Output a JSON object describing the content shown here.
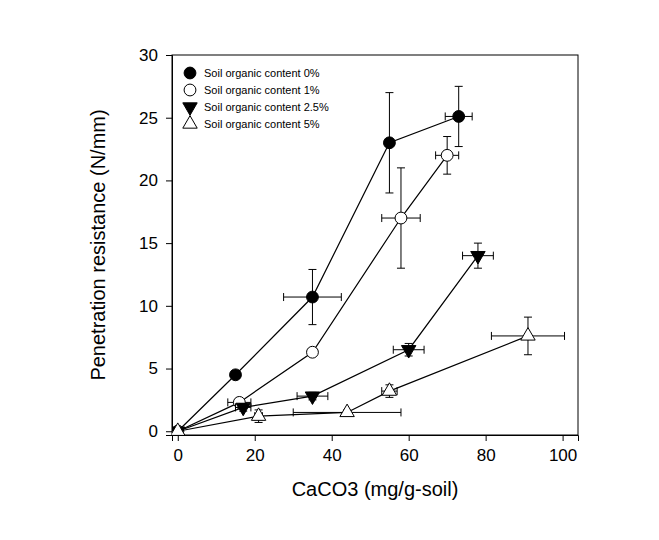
{
  "chart_data": {
    "type": "line",
    "x_label": "CaCO3 (mg/g-soil)",
    "y_label": "Penetration resistance (N/mm)",
    "xlim": [
      -1.5,
      104
    ],
    "xticks": [
      0,
      20,
      40,
      60,
      80,
      100
    ],
    "ylim": [
      -0.3,
      30
    ],
    "yticks": [
      0,
      5,
      10,
      15,
      20,
      25,
      30
    ],
    "grid": false,
    "legend": "upper left",
    "series": [
      {
        "name": "Soil organic content 0%",
        "color": "#000000",
        "marker": "filled-circle",
        "x": [
          0,
          15,
          35,
          55,
          73
        ],
        "values": [
          0,
          4.5,
          10.7,
          23,
          25.1
        ],
        "x_error": [
          0,
          1,
          7.5,
          0.5,
          3.5
        ],
        "y_error": [
          0,
          0.3,
          2.2,
          4,
          2.4
        ]
      },
      {
        "name": "Soil organic content 1%",
        "color": "#000000",
        "marker": "open-circle",
        "x": [
          0,
          16,
          35,
          58,
          70
        ],
        "values": [
          0,
          2.3,
          6.3,
          17,
          22
        ],
        "x_error": [
          0,
          3,
          0.5,
          5,
          3
        ],
        "y_error": [
          0,
          0.3,
          0.3,
          4,
          1.5
        ]
      },
      {
        "name": "Soil organic content 2.5%",
        "color": "#000000",
        "marker": "filled-triangle-down",
        "x": [
          0,
          17,
          35,
          60,
          78
        ],
        "values": [
          0,
          1.9,
          2.8,
          6.5,
          14
        ],
        "x_error": [
          0,
          2,
          4,
          4,
          4
        ],
        "y_error": [
          0,
          0.3,
          0.3,
          0.5,
          1
        ]
      },
      {
        "name": "Soil organic content 5%",
        "color": "#000000",
        "marker": "open-triangle-up",
        "x": [
          0,
          21,
          44,
          55,
          91
        ],
        "values": [
          0,
          1.2,
          1.5,
          3.2,
          7.6
        ],
        "x_error": [
          0,
          1,
          14,
          2,
          9.5
        ],
        "y_error": [
          0,
          0.5,
          0.2,
          0.5,
          1.5
        ]
      }
    ]
  }
}
